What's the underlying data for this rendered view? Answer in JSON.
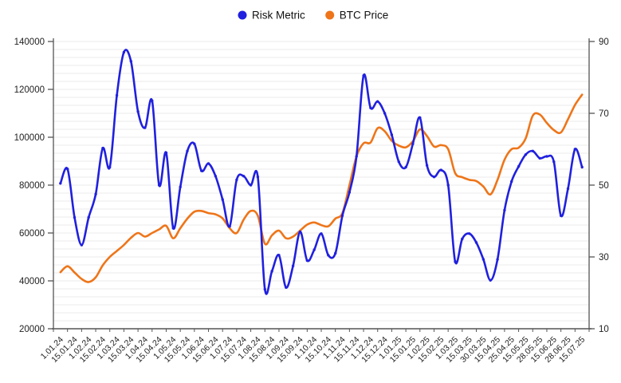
{
  "legend": {
    "items": [
      {
        "label": "Risk Metric",
        "color": "#2020df"
      },
      {
        "label": "BTC Price",
        "color": "#ee7519"
      }
    ],
    "position": "top-center"
  },
  "chart_data": {
    "type": "line",
    "title": "",
    "xlabel": "",
    "ylabel_left": "",
    "ylabel_right": "",
    "grid": "horizontal-minor",
    "legend_position": "top-center",
    "x_labels": [
      "1.01.24",
      "15.01.24",
      "1.02.24",
      "15.02.24",
      "1.03.24",
      "15.03.24",
      "1.04.24",
      "15.04.24",
      "1.05.24",
      "15.05.24",
      "1.06.24",
      "15.06.24",
      "1.07.24",
      "15.07.24",
      "1.08.24",
      "15.08.24",
      "1.09.24",
      "15.09.24",
      "1.10.24",
      "15.10.24",
      "1.11.24",
      "15.11.24",
      "1.12.24",
      "15.12.24",
      "1.01.25",
      "15.01.25",
      "1.02.25",
      "15.02.25",
      "1.03.25",
      "15.03.25",
      "30.03.25",
      "15.04.25",
      "25.04.25",
      "15.05.25",
      "28.05.25",
      "15.06.25",
      "28.06.25",
      "15.07.25"
    ],
    "points_per_label": 2,
    "left_axis": {
      "min": 20000,
      "max": 140000,
      "ticks": [
        20000,
        40000,
        60000,
        80000,
        100000,
        120000,
        140000
      ],
      "series": "BTC Price"
    },
    "right_axis": {
      "min": 10,
      "max": 90,
      "ticks": [
        10,
        30,
        50,
        70,
        90
      ],
      "series": "Risk Metric"
    },
    "series": [
      {
        "name": "Risk Metric",
        "axis": "right",
        "color": "#2020df",
        "markers": true,
        "values": [
          50.5,
          54.5,
          41,
          33.3,
          41,
          47.5,
          60.3,
          55,
          75,
          87,
          84.5,
          70.5,
          66,
          73.5,
          50,
          59,
          38,
          49.5,
          59.5,
          61.5,
          54,
          56,
          52.5,
          46,
          38.5,
          51.5,
          52.5,
          50,
          52.3,
          21,
          26,
          30.5,
          21.5,
          27.5,
          37,
          29,
          32,
          36.5,
          30.5,
          31,
          41.5,
          48,
          58,
          80.5,
          71.5,
          73.3,
          70,
          64,
          56.5,
          55,
          61.5,
          68.8,
          55.5,
          52.3,
          54.2,
          50,
          28.7,
          35,
          36.5,
          34,
          29.3,
          23.5,
          29.3,
          43,
          51,
          55.2,
          58.5,
          59.5,
          57.5,
          58,
          56.5,
          41.5,
          49,
          60,
          55
        ]
      },
      {
        "name": "BTC Price",
        "axis": "left",
        "color": "#ee7519",
        "markers": false,
        "values": [
          43600,
          46100,
          43500,
          40800,
          39500,
          41500,
          46500,
          50000,
          52500,
          55000,
          58000,
          60000,
          58500,
          60000,
          61500,
          63000,
          57800,
          62000,
          66000,
          68900,
          69200,
          68300,
          67800,
          66100,
          62000,
          60000,
          65600,
          69200,
          67200,
          55500,
          59000,
          61000,
          57800,
          58500,
          61000,
          63500,
          64400,
          63300,
          62800,
          66000,
          68300,
          80000,
          92000,
          97500,
          97800,
          103800,
          102500,
          98500,
          96500,
          95800,
          98300,
          103300,
          100500,
          96100,
          96700,
          95000,
          85000,
          83300,
          82200,
          81700,
          79400,
          76100,
          82200,
          90600,
          95000,
          95600,
          99500,
          109000,
          109500,
          106000,
          103000,
          102000,
          107500,
          113500,
          117800
        ]
      }
    ]
  }
}
